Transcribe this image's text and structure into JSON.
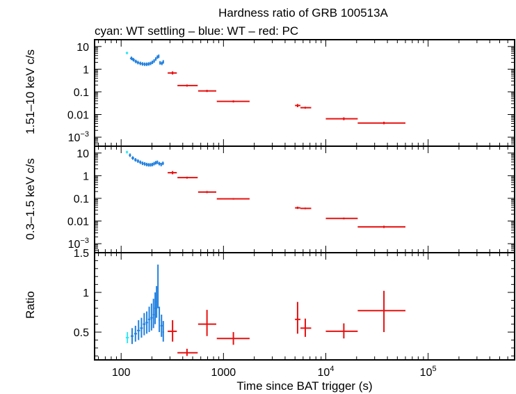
{
  "colors": {
    "cyan": "#33e6f0",
    "blue": "#2080e0",
    "red": "#e61010",
    "axis": "#000000"
  },
  "chart_data": {
    "type": "scatter",
    "title": "Hardness ratio of GRB 100513A",
    "subtitle": "cyan: WT settling – blue: WT – red: PC",
    "xlabel": "Time since BAT trigger (s)",
    "xscale": "log",
    "xlim": [
      55,
      700000
    ],
    "xticks": [
      {
        "value": 100,
        "label": "100"
      },
      {
        "value": 1000,
        "label": "1000"
      },
      {
        "value": 10000,
        "label": "10",
        "exp": "4"
      },
      {
        "value": 100000,
        "label": "10",
        "exp": "5"
      }
    ],
    "panels": [
      {
        "id": "hard",
        "ylabel": "1.51–10 keV c/s",
        "yscale": "log",
        "ylim": [
          0.0004,
          20
        ],
        "yticks": [
          {
            "value": 10,
            "label": "10"
          },
          {
            "value": 1,
            "label": "1"
          },
          {
            "value": 0.1,
            "label": "0.1"
          },
          {
            "value": 0.01,
            "label": "0.01"
          },
          {
            "value": 0.001,
            "label": "10",
            "exp": "−3"
          }
        ],
        "series": [
          {
            "name": "WT settling",
            "color": "cyan",
            "points": [
              {
                "x": 114,
                "xlo": 111,
                "xhi": 117,
                "y": 5.2,
                "ylo": 4.5,
                "yhi": 5.9
              }
            ]
          },
          {
            "name": "WT",
            "color": "blue",
            "points": [
              {
                "x": 126,
                "xlo": 122,
                "xhi": 130,
                "y": 3.0
              },
              {
                "x": 132,
                "xlo": 128,
                "xhi": 136,
                "y": 2.6
              },
              {
                "x": 139,
                "xlo": 135,
                "xhi": 143,
                "y": 2.2
              },
              {
                "x": 146,
                "xlo": 142,
                "xhi": 150,
                "y": 1.95
              },
              {
                "x": 154,
                "xlo": 150,
                "xhi": 158,
                "y": 1.8
              },
              {
                "x": 162,
                "xlo": 158,
                "xhi": 166,
                "y": 1.7
              },
              {
                "x": 170,
                "xlo": 166,
                "xhi": 174,
                "y": 1.65
              },
              {
                "x": 178,
                "xlo": 174,
                "xhi": 182,
                "y": 1.65
              },
              {
                "x": 186,
                "xlo": 182,
                "xhi": 190,
                "y": 1.7
              },
              {
                "x": 194,
                "xlo": 190,
                "xhi": 198,
                "y": 1.8
              },
              {
                "x": 202,
                "xlo": 198,
                "xhi": 206,
                "y": 2.0
              },
              {
                "x": 210,
                "xlo": 206,
                "xhi": 214,
                "y": 2.3
              },
              {
                "x": 218,
                "xlo": 214,
                "xhi": 222,
                "y": 2.8
              },
              {
                "x": 226,
                "xlo": 222,
                "xhi": 230,
                "y": 3.4
              },
              {
                "x": 233,
                "xlo": 230,
                "xhi": 236,
                "y": 3.7
              },
              {
                "x": 240,
                "xlo": 236,
                "xhi": 244,
                "y": 1.9
              },
              {
                "x": 250,
                "xlo": 244,
                "xhi": 256,
                "y": 1.8
              },
              {
                "x": 258,
                "xlo": 254,
                "xhi": 262,
                "y": 2.1
              }
            ]
          },
          {
            "name": "PC",
            "color": "red",
            "points": [
              {
                "x": 318,
                "xlo": 285,
                "xhi": 350,
                "y": 0.68,
                "ylo": 0.58,
                "yhi": 0.8
              },
              {
                "x": 440,
                "xlo": 355,
                "xhi": 560,
                "y": 0.19,
                "ylo": 0.17,
                "yhi": 0.21
              },
              {
                "x": 690,
                "xlo": 565,
                "xhi": 850,
                "y": 0.11,
                "ylo": 0.098,
                "yhi": 0.122
              },
              {
                "x": 1250,
                "xlo": 860,
                "xhi": 1800,
                "y": 0.038,
                "ylo": 0.034,
                "yhi": 0.042
              },
              {
                "x": 5300,
                "xlo": 5000,
                "xhi": 5650,
                "y": 0.025,
                "ylo": 0.021,
                "yhi": 0.029
              },
              {
                "x": 6300,
                "xlo": 5650,
                "xhi": 7200,
                "y": 0.02,
                "ylo": 0.018,
                "yhi": 0.022
              },
              {
                "x": 15000,
                "xlo": 10000,
                "xhi": 20500,
                "y": 0.0065,
                "ylo": 0.0056,
                "yhi": 0.0075
              },
              {
                "x": 37000,
                "xlo": 20500,
                "xhi": 60000,
                "y": 0.0042,
                "ylo": 0.0037,
                "yhi": 0.0048
              }
            ]
          }
        ]
      },
      {
        "id": "soft",
        "ylabel": "0.3–1.5 keV c/s",
        "yscale": "log",
        "ylim": [
          0.0004,
          20
        ],
        "yticks": [
          {
            "value": 10,
            "label": "10"
          },
          {
            "value": 1,
            "label": "1"
          },
          {
            "value": 0.1,
            "label": "0.1"
          },
          {
            "value": 0.01,
            "label": "0.01"
          },
          {
            "value": 0.001,
            "label": "10",
            "exp": "−3"
          }
        ],
        "series": [
          {
            "name": "WT settling",
            "color": "cyan",
            "points": [
              {
                "x": 114,
                "xlo": 111,
                "xhi": 117,
                "y": 11,
                "ylo": 9.5,
                "yhi": 12.5
              }
            ]
          },
          {
            "name": "WT",
            "color": "blue",
            "points": [
              {
                "x": 122,
                "xlo": 119,
                "xhi": 125,
                "y": 8.0
              },
              {
                "x": 130,
                "xlo": 126,
                "xhi": 134,
                "y": 6.0
              },
              {
                "x": 138,
                "xlo": 134,
                "xhi": 142,
                "y": 5.0
              },
              {
                "x": 146,
                "xlo": 142,
                "xhi": 150,
                "y": 4.4
              },
              {
                "x": 154,
                "xlo": 150,
                "xhi": 158,
                "y": 3.9
              },
              {
                "x": 162,
                "xlo": 158,
                "xhi": 166,
                "y": 3.5
              },
              {
                "x": 170,
                "xlo": 166,
                "xhi": 174,
                "y": 3.3
              },
              {
                "x": 178,
                "xlo": 174,
                "xhi": 182,
                "y": 3.1
              },
              {
                "x": 186,
                "xlo": 182,
                "xhi": 190,
                "y": 3.0
              },
              {
                "x": 194,
                "xlo": 190,
                "xhi": 198,
                "y": 3.0
              },
              {
                "x": 202,
                "xlo": 198,
                "xhi": 206,
                "y": 3.1
              },
              {
                "x": 210,
                "xlo": 206,
                "xhi": 214,
                "y": 3.4
              },
              {
                "x": 218,
                "xlo": 214,
                "xhi": 222,
                "y": 3.7
              },
              {
                "x": 226,
                "xlo": 222,
                "xhi": 230,
                "y": 3.9
              },
              {
                "x": 236,
                "xlo": 230,
                "xhi": 242,
                "y": 3.4
              },
              {
                "x": 246,
                "xlo": 242,
                "xhi": 250,
                "y": 3.1
              },
              {
                "x": 256,
                "xlo": 250,
                "xhi": 262,
                "y": 3.5
              }
            ]
          },
          {
            "name": "PC",
            "color": "red",
            "points": [
              {
                "x": 318,
                "xlo": 285,
                "xhi": 350,
                "y": 1.35,
                "ylo": 1.15,
                "yhi": 1.6
              },
              {
                "x": 440,
                "xlo": 355,
                "xhi": 560,
                "y": 0.82,
                "ylo": 0.74,
                "yhi": 0.9
              },
              {
                "x": 690,
                "xlo": 565,
                "xhi": 850,
                "y": 0.19,
                "ylo": 0.17,
                "yhi": 0.21
              },
              {
                "x": 1250,
                "xlo": 860,
                "xhi": 1800,
                "y": 0.095,
                "ylo": 0.088,
                "yhi": 0.102
              },
              {
                "x": 5300,
                "xlo": 5000,
                "xhi": 5650,
                "y": 0.038,
                "ylo": 0.034,
                "yhi": 0.043
              },
              {
                "x": 6300,
                "xlo": 5650,
                "xhi": 7200,
                "y": 0.036,
                "ylo": 0.033,
                "yhi": 0.039
              },
              {
                "x": 15000,
                "xlo": 10000,
                "xhi": 20500,
                "y": 0.013,
                "ylo": 0.0118,
                "yhi": 0.0142
              },
              {
                "x": 37000,
                "xlo": 20500,
                "xhi": 60000,
                "y": 0.0055,
                "ylo": 0.0049,
                "yhi": 0.0062
              }
            ]
          }
        ]
      },
      {
        "id": "ratio",
        "ylabel": "Ratio",
        "yscale": "linear",
        "ylim": [
          0.15,
          1.5
        ],
        "yticks": [
          {
            "value": 1.5,
            "label": "1.5"
          },
          {
            "value": 1,
            "label": "1"
          },
          {
            "value": 0.5,
            "label": "0.5"
          }
        ],
        "minor_step": 0.1,
        "series": [
          {
            "name": "WT settling",
            "color": "cyan",
            "points": [
              {
                "x": 115,
                "xlo": 111,
                "xhi": 119,
                "y": 0.43,
                "ylo": 0.36,
                "yhi": 0.5
              }
            ]
          },
          {
            "name": "WT",
            "color": "blue",
            "points": [
              {
                "x": 128,
                "xlo": 124,
                "xhi": 132,
                "y": 0.45,
                "ylo": 0.35,
                "yhi": 0.55
              },
              {
                "x": 138,
                "xlo": 134,
                "xhi": 143,
                "y": 0.48,
                "ylo": 0.38,
                "yhi": 0.58
              },
              {
                "x": 148,
                "xlo": 143,
                "xhi": 153,
                "y": 0.52,
                "ylo": 0.4,
                "yhi": 0.65
              },
              {
                "x": 158,
                "xlo": 153,
                "xhi": 163,
                "y": 0.55,
                "ylo": 0.43,
                "yhi": 0.68
              },
              {
                "x": 168,
                "xlo": 163,
                "xhi": 173,
                "y": 0.6,
                "ylo": 0.46,
                "yhi": 0.74
              },
              {
                "x": 178,
                "xlo": 173,
                "xhi": 183,
                "y": 0.62,
                "ylo": 0.48,
                "yhi": 0.76
              },
              {
                "x": 188,
                "xlo": 183,
                "xhi": 193,
                "y": 0.66,
                "ylo": 0.5,
                "yhi": 0.82
              },
              {
                "x": 198,
                "xlo": 193,
                "xhi": 203,
                "y": 0.68,
                "ylo": 0.52,
                "yhi": 0.86
              },
              {
                "x": 207,
                "xlo": 203,
                "xhi": 211,
                "y": 0.72,
                "ylo": 0.55,
                "yhi": 0.92
              },
              {
                "x": 215,
                "xlo": 211,
                "xhi": 219,
                "y": 0.8,
                "ylo": 0.6,
                "yhi": 1.0
              },
              {
                "x": 222,
                "xlo": 219,
                "xhi": 225,
                "y": 0.88,
                "ylo": 0.68,
                "yhi": 1.08
              },
              {
                "x": 229,
                "xlo": 226,
                "xhi": 232,
                "y": 1.05,
                "ylo": 0.8,
                "yhi": 1.35
              },
              {
                "x": 236,
                "xlo": 232,
                "xhi": 240,
                "y": 0.65,
                "ylo": 0.5,
                "yhi": 0.82
              },
              {
                "x": 248,
                "xlo": 242,
                "xhi": 254,
                "y": 0.58,
                "ylo": 0.44,
                "yhi": 0.72
              },
              {
                "x": 258,
                "xlo": 254,
                "xhi": 262,
                "y": 0.5,
                "ylo": 0.38,
                "yhi": 0.64
              }
            ]
          },
          {
            "name": "PC",
            "color": "red",
            "points": [
              {
                "x": 318,
                "xlo": 285,
                "xhi": 350,
                "y": 0.51,
                "ylo": 0.38,
                "yhi": 0.65
              },
              {
                "x": 440,
                "xlo": 355,
                "xhi": 560,
                "y": 0.24,
                "ylo": 0.2,
                "yhi": 0.29
              },
              {
                "x": 690,
                "xlo": 565,
                "xhi": 850,
                "y": 0.6,
                "ylo": 0.45,
                "yhi": 0.78
              },
              {
                "x": 1250,
                "xlo": 860,
                "xhi": 1800,
                "y": 0.42,
                "ylo": 0.34,
                "yhi": 0.5
              },
              {
                "x": 5300,
                "xlo": 5000,
                "xhi": 5650,
                "y": 0.66,
                "ylo": 0.48,
                "yhi": 0.88
              },
              {
                "x": 6300,
                "xlo": 5650,
                "xhi": 7200,
                "y": 0.55,
                "ylo": 0.44,
                "yhi": 0.67
              },
              {
                "x": 15000,
                "xlo": 10000,
                "xhi": 20500,
                "y": 0.51,
                "ylo": 0.42,
                "yhi": 0.61
              },
              {
                "x": 37000,
                "xlo": 20500,
                "xhi": 60000,
                "y": 0.77,
                "ylo": 0.5,
                "yhi": 1.02
              }
            ]
          }
        ]
      }
    ]
  }
}
